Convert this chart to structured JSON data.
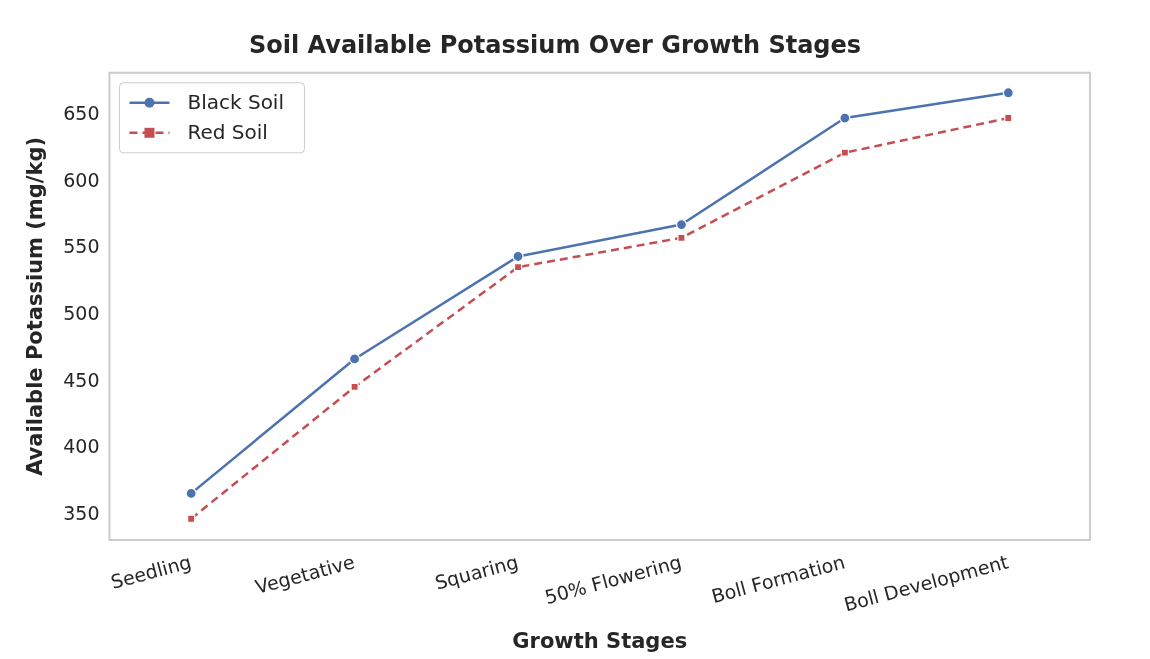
{
  "chart_data": {
    "type": "line",
    "title": "Soil Available Potassium Over Growth Stages",
    "xlabel": "Growth Stages",
    "ylabel": "Available Potassium (mg/kg)",
    "categories": [
      "Seedling",
      "Vegetative",
      "Squaring",
      "50% Flowering",
      "Boll Formation",
      "Boll Development"
    ],
    "series": [
      {
        "name": "Black Soil",
        "color": "#4c72b0",
        "marker": "circle",
        "line_style": "solid",
        "values": [
          366,
          467,
          544,
          568,
          648,
          667
        ]
      },
      {
        "name": "Red Soil",
        "color": "#c44e52",
        "marker": "square",
        "line_style": "dashed",
        "values": [
          347,
          446,
          536,
          558,
          622,
          648
        ]
      }
    ],
    "ylim": [
      331,
      682
    ],
    "yticks": [
      350,
      400,
      450,
      500,
      550,
      600,
      650
    ],
    "grid": false,
    "legend": "top left"
  }
}
